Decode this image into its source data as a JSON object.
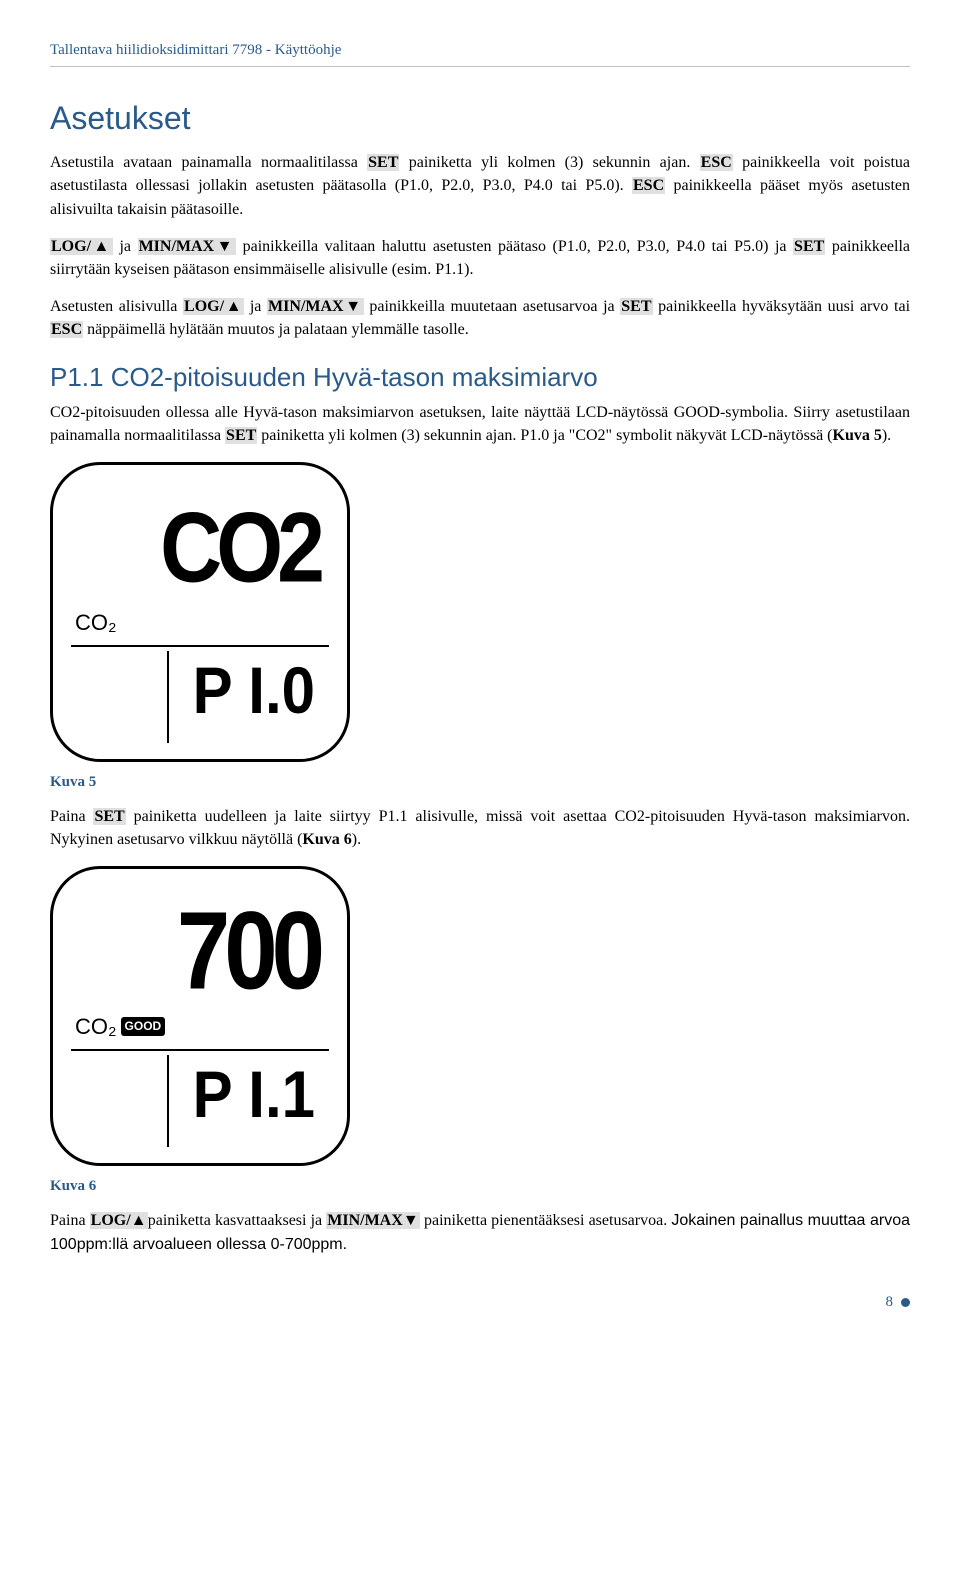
{
  "header": "Tallentava hiilidioksidimittari 7798 - Käyttöohje",
  "section_title": "Asetukset",
  "para1_a": "Asetustila avataan painamalla normaalitilassa ",
  "para1_set": "SET",
  "para1_b": " painiketta yli kolmen (3) sekunnin ajan. ",
  "para1_esc": "ESC",
  "para1_c": " painikkeella voit poistua asetustilasta ollessasi jollakin asetusten päätasolla (P1.0, P2.0, P3.0, P4.0 tai P5.0). ",
  "para1_esc2": "ESC",
  "para1_d": " painikkeella pääset myös asetusten alisivuilta takaisin päätasoille.",
  "para2_log": "LOG/▲",
  "para2_a": " ja ",
  "para2_minmax": "MIN/MAX▼",
  "para2_b": " painikkeilla valitaan haluttu asetusten päätaso (P1.0, P2.0, P3.0, P4.0 tai P5.0) ja ",
  "para2_set": "SET",
  "para2_c": " painikkeella siirrytään kyseisen päätason ensimmäiselle alisivulle (esim. P1.1).",
  "para3_a": "Asetusten alisivulla ",
  "para3_log": "LOG/▲",
  "para3_b": " ja ",
  "para3_minmax": "MIN/MAX▼",
  "para3_c": " painikkeilla muutetaan asetusarvoa ja ",
  "para3_set": "SET",
  "para3_d": " painikkeella hyväksytään uusi arvo tai ",
  "para3_esc": "ESC",
  "para3_e": " näppäimellä hylätään muutos ja palataan ylemmälle tasolle.",
  "subsection_title": "P1.1 CO2-pitoisuuden Hyvä-tason maksimiarvo",
  "p11_a": "CO2-pitoisuuden ollessa alle Hyvä-tason maksimiarvon asetuksen, laite näyttää LCD-näytössä GOOD-symbolia. Siirry asetustilaan painamalla normaalitilassa ",
  "p11_set": "SET",
  "p11_b": " painiketta yli kolmen (3) sekunnin ajan. P1.0 ja \"CO2\" symbolit näkyvät LCD-näytössä (",
  "p11_kuva5": "Kuva 5",
  "p11_c": ").",
  "lcd1": {
    "big": "CO2",
    "co2_label": "CO₂",
    "small": "P I.0"
  },
  "caption1": "Kuva 5",
  "mid_a": "Paina ",
  "mid_set": "SET",
  "mid_b": " painiketta uudelleen ja laite siirtyy P1.1 alisivulle, missä voit asettaa CO2-pitoisuuden Hyvä-tason maksimiarvon. Nykyinen asetusarvo vilkkuu näytöllä (",
  "mid_kuva6": "Kuva 6",
  "mid_c": ").",
  "lcd2": {
    "big": "700",
    "co2_label": "CO₂",
    "good": "GOOD",
    "small": "P I.1"
  },
  "caption2": "Kuva 6",
  "last_a": "Paina ",
  "last_log": "LOG/▲",
  "last_b": "painiketta kasvattaaksesi ja ",
  "last_minmax": "MIN/MAX▼",
  "last_c": " painiketta pienentääksesi asetusarvoa. ",
  "last_sans": "Jokainen painallus muuttaa arvoa 100ppm:llä arvoalueen ollessa 0-700ppm.",
  "page_number": "8"
}
